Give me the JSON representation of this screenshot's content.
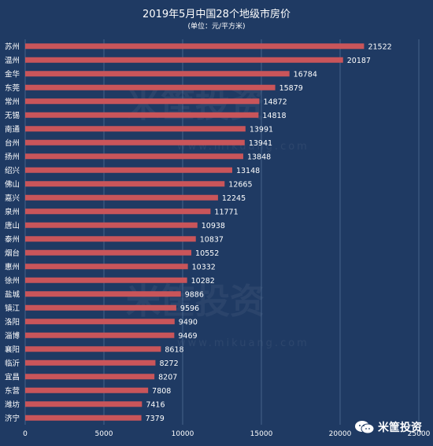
{
  "chart_data": {
    "type": "bar",
    "orientation": "horizontal",
    "title": "2019年5月中国28个地级市房价",
    "subtitle": "(单位：元/平方米)",
    "categories": [
      "苏州",
      "温州",
      "金华",
      "东莞",
      "常州",
      "无锡",
      "南通",
      "台州",
      "扬州",
      "绍兴",
      "佛山",
      "嘉兴",
      "泉州",
      "唐山",
      "泰州",
      "烟台",
      "惠州",
      "徐州",
      "盐城",
      "镇江",
      "洛阳",
      "淄博",
      "襄阳",
      "临沂",
      "宜昌",
      "东营",
      "潍坊",
      "济宁"
    ],
    "values": [
      21522,
      20187,
      16784,
      15879,
      14872,
      14818,
      13991,
      13941,
      13848,
      13148,
      12665,
      12245,
      11771,
      10938,
      10837,
      10552,
      10332,
      10282,
      9886,
      9596,
      9490,
      9469,
      8618,
      8272,
      8207,
      7808,
      7416,
      7379
    ],
    "xlim": [
      0,
      25000
    ],
    "xticks": [
      0,
      5000,
      10000,
      15000,
      20000,
      25000
    ],
    "grid": "vertical",
    "colors": {
      "bar": "#c9555a",
      "background": "#1f3a63",
      "grid": "#5f7ea3"
    }
  },
  "watermark": {
    "text": "米筐投资",
    "url": "www.mikuang.com"
  },
  "brand": {
    "label": "米筐投资",
    "icon": "wechat-icon"
  }
}
